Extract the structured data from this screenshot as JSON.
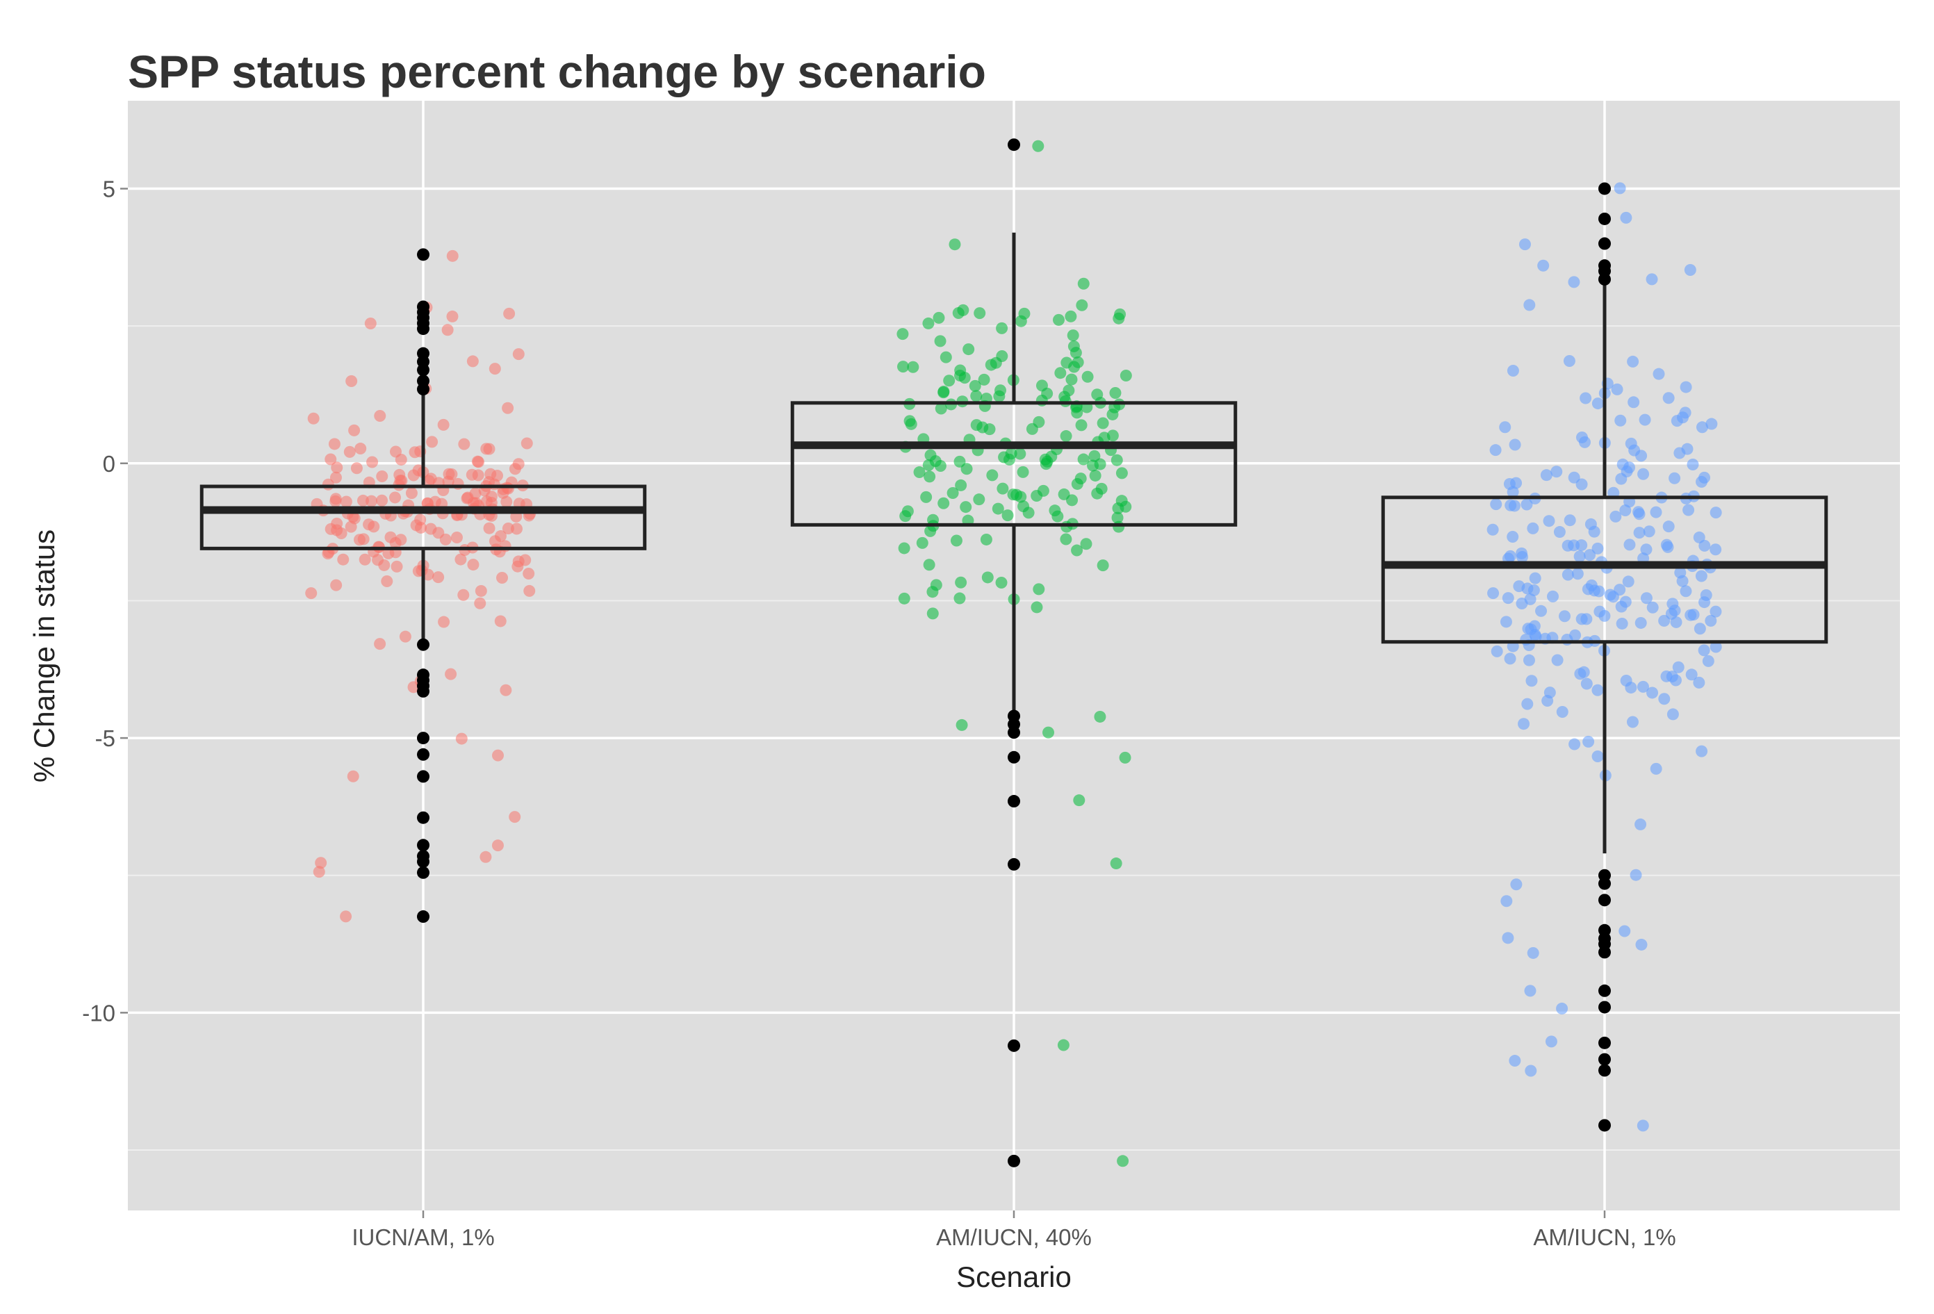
{
  "chart_data": {
    "type": "boxplot",
    "title": "SPP status percent change by scenario",
    "xlabel": "Scenario",
    "ylabel": "% Change in status",
    "ylim": [
      -13.6,
      6.6
    ],
    "y_ticks": [
      5,
      0,
      -5,
      -10
    ],
    "y_tick_labels": [
      "5",
      "0",
      "-5",
      "-10"
    ],
    "grid": true,
    "legend": "none",
    "categories": [
      "IUCN/AM, 1%",
      "AM/IUCN, 40%",
      "AM/IUCN, 1%"
    ],
    "series": [
      {
        "category": "IUCN/AM, 1%",
        "color": "#f8766d",
        "box": {
          "q1": -1.55,
          "median": -0.85,
          "q3": -0.42,
          "whisker_low": -3.2,
          "whisker_high": 1.25
        },
        "outliers": [
          3.8,
          2.85,
          2.75,
          2.65,
          2.55,
          2.45,
          2.0,
          1.85,
          1.7,
          1.5,
          1.35,
          -3.3,
          -3.85,
          -3.95,
          -4.05,
          -4.15,
          -5.0,
          -5.3,
          -5.7,
          -6.45,
          -6.95,
          -7.15,
          -7.25,
          -7.45,
          -8.25
        ],
        "jitter_count": 170
      },
      {
        "category": "AM/IUCN, 40%",
        "color": "#00ba38",
        "box": {
          "q1": -1.12,
          "median": 0.33,
          "q3": 1.1,
          "whisker_low": -4.5,
          "whisker_high": 4.2
        },
        "outliers": [
          5.8,
          -4.6,
          -4.75,
          -4.9,
          -5.35,
          -6.15,
          -7.3,
          -10.6,
          -12.7
        ],
        "jitter_count": 170
      },
      {
        "category": "AM/IUCN, 1%",
        "color": "#619cff",
        "box": {
          "q1": -3.25,
          "median": -1.85,
          "q3": -0.62,
          "whisker_low": -7.1,
          "whisker_high": 3.3
        },
        "outliers": [
          5.0,
          4.45,
          4.0,
          3.6,
          3.5,
          3.35,
          -7.5,
          -7.65,
          -7.95,
          -8.5,
          -8.65,
          -8.75,
          -8.9,
          -9.6,
          -9.9,
          -10.55,
          -10.85,
          -11.05,
          -12.05
        ],
        "jitter_count": 200
      }
    ]
  }
}
